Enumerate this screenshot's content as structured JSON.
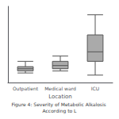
{
  "chart_data": {
    "type": "box",
    "title": "Figure 4: Severity of Metabolic Alkalosis According to L",
    "xlabel": "Location",
    "categories": [
      "Outpatient",
      "Medical ward",
      "ICU"
    ],
    "boxes": [
      {
        "whisker_low": 7.445,
        "q1": 7.455,
        "median": 7.465,
        "q3": 7.475,
        "whisker_high": 7.5
      },
      {
        "whisker_low": 7.455,
        "q1": 7.465,
        "median": 7.48,
        "q3": 7.5,
        "whisker_high": 7.525
      },
      {
        "whisker_low": 7.435,
        "q1": 7.5,
        "median": 7.545,
        "q3": 7.625,
        "whisker_high": 7.72
      }
    ],
    "color": "#aaaaaa",
    "ylim": [
      7.4,
      7.76
    ],
    "grid": false,
    "tick_labels": "x"
  }
}
